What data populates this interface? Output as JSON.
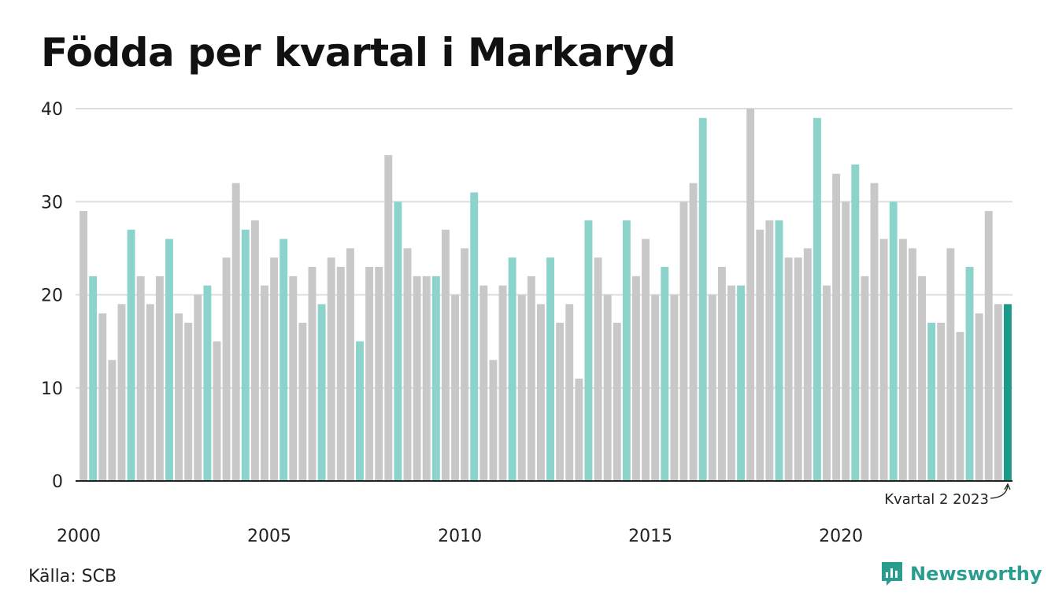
{
  "title": "Födda per kvartal i Markaryd",
  "source": "Källa: SCB",
  "brand": "Newsworthy",
  "annotation": "Kvartal 2 2023",
  "colors": {
    "other_quarters": "#c8c8c8",
    "same_quarter": "#8cd3cc",
    "latest": "#1a9a8a",
    "grid": "#dddddd",
    "brand": "#2a9d8f"
  },
  "chart_data": {
    "type": "bar",
    "title": "Födda per kvartal i Markaryd",
    "xlabel": "",
    "ylabel": "",
    "ylim": [
      0,
      40
    ],
    "yticks": [
      0,
      10,
      20,
      30,
      40
    ],
    "xticks": [
      "2000",
      "2005",
      "2010",
      "2015",
      "2020"
    ],
    "start_year": 2000,
    "highlight_quarter": 2,
    "grid": true,
    "values": [
      29,
      22,
      18,
      13,
      19,
      27,
      22,
      19,
      22,
      26,
      18,
      17,
      20,
      21,
      15,
      24,
      32,
      27,
      28,
      21,
      24,
      26,
      22,
      17,
      23,
      19,
      24,
      23,
      25,
      15,
      23,
      23,
      35,
      30,
      25,
      22,
      22,
      22,
      27,
      20,
      25,
      31,
      21,
      13,
      21,
      24,
      20,
      22,
      19,
      24,
      17,
      19,
      11,
      28,
      24,
      20,
      17,
      28,
      22,
      26,
      20,
      23,
      20,
      30,
      32,
      39,
      20,
      23,
      21,
      21,
      40,
      27,
      28,
      28,
      24,
      24,
      25,
      39,
      21,
      33,
      30,
      34,
      22,
      32,
      26,
      30,
      26,
      25,
      22,
      17,
      17,
      25,
      16,
      23,
      18,
      29,
      19,
      19
    ]
  }
}
